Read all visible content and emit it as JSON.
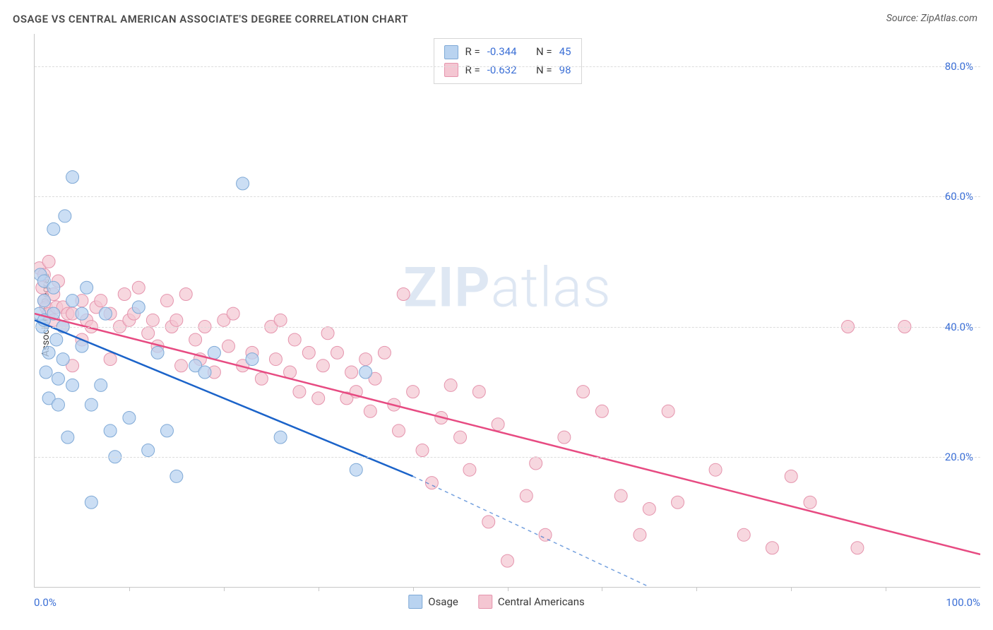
{
  "title": "OSAGE VS CENTRAL AMERICAN ASSOCIATE'S DEGREE CORRELATION CHART",
  "source": "Source: ZipAtlas.com",
  "y_axis_label": "Associate's Degree",
  "watermark_bold": "ZIP",
  "watermark_light": "atlas",
  "chart": {
    "type": "scatter",
    "xlim": [
      0,
      100
    ],
    "ylim": [
      0,
      85
    ],
    "x_min_label": "0.0%",
    "x_max_label": "100.0%",
    "y_grid": [
      20,
      40,
      60,
      80
    ],
    "y_tick_labels": [
      "20.0%",
      "40.0%",
      "60.0%",
      "80.0%"
    ],
    "x_ticks_count": 10,
    "background_color": "#ffffff",
    "grid_color": "#dcdcdc",
    "axis_color": "#c7c7c7",
    "tick_label_color": "#3b6fd6",
    "tick_label_fontsize": 15,
    "series": [
      {
        "name": "Osage",
        "label": "Osage",
        "color_fill": "#b9d3f0",
        "color_stroke": "#7fa9d6",
        "trend_color": "#1b63c9",
        "marker_radius": 9,
        "marker_opacity": 0.75,
        "R": "-0.344",
        "N": "45",
        "trend": {
          "x1": 0,
          "y1": 41,
          "x2_solid": 40,
          "y2_solid": 17,
          "x2_dash": 65,
          "y2_dash": 0
        },
        "points": [
          [
            0.5,
            42
          ],
          [
            0.6,
            48
          ],
          [
            0.8,
            40
          ],
          [
            1,
            44
          ],
          [
            1,
            47
          ],
          [
            1,
            41
          ],
          [
            1.2,
            33
          ],
          [
            1.5,
            36
          ],
          [
            1.5,
            29
          ],
          [
            2,
            46
          ],
          [
            2,
            55
          ],
          [
            2,
            42
          ],
          [
            2.3,
            38
          ],
          [
            2.5,
            32
          ],
          [
            2.5,
            28
          ],
          [
            3,
            40
          ],
          [
            3,
            35
          ],
          [
            3.2,
            57
          ],
          [
            3.5,
            23
          ],
          [
            4,
            31
          ],
          [
            4,
            44
          ],
          [
            4,
            63
          ],
          [
            5,
            37
          ],
          [
            5,
            42
          ],
          [
            5.5,
            46
          ],
          [
            6,
            28
          ],
          [
            6,
            13
          ],
          [
            7,
            31
          ],
          [
            7.5,
            42
          ],
          [
            8,
            24
          ],
          [
            8.5,
            20
          ],
          [
            10,
            26
          ],
          [
            11,
            43
          ],
          [
            12,
            21
          ],
          [
            13,
            36
          ],
          [
            14,
            24
          ],
          [
            15,
            17
          ],
          [
            17,
            34
          ],
          [
            18,
            33
          ],
          [
            19,
            36
          ],
          [
            22,
            62
          ],
          [
            23,
            35
          ],
          [
            26,
            23
          ],
          [
            34,
            18
          ],
          [
            35,
            33
          ]
        ]
      },
      {
        "name": "Central Americans",
        "label": "Central Americans",
        "color_fill": "#f4c6d2",
        "color_stroke": "#e594ad",
        "trend_color": "#e74b82",
        "marker_radius": 9,
        "marker_opacity": 0.7,
        "R": "-0.632",
        "N": "98",
        "trend": {
          "x1": 0,
          "y1": 42,
          "x2_solid": 100,
          "y2_solid": 5,
          "x2_dash": 100,
          "y2_dash": 5
        },
        "points": [
          [
            0.5,
            49
          ],
          [
            0.8,
            46
          ],
          [
            1,
            48
          ],
          [
            1,
            44
          ],
          [
            1.2,
            43
          ],
          [
            1.5,
            50
          ],
          [
            1.5,
            42
          ],
          [
            2,
            45
          ],
          [
            2,
            41
          ],
          [
            2.3,
            43
          ],
          [
            2.5,
            47
          ],
          [
            3,
            40
          ],
          [
            3,
            43
          ],
          [
            3.5,
            42
          ],
          [
            4,
            34
          ],
          [
            4,
            42
          ],
          [
            5,
            38
          ],
          [
            5,
            44
          ],
          [
            5.5,
            41
          ],
          [
            6,
            40
          ],
          [
            6.5,
            43
          ],
          [
            7,
            44
          ],
          [
            8,
            35
          ],
          [
            8,
            42
          ],
          [
            9,
            40
          ],
          [
            9.5,
            45
          ],
          [
            10,
            41
          ],
          [
            10.5,
            42
          ],
          [
            11,
            46
          ],
          [
            12,
            39
          ],
          [
            12.5,
            41
          ],
          [
            13,
            37
          ],
          [
            14,
            44
          ],
          [
            14.5,
            40
          ],
          [
            15,
            41
          ],
          [
            15.5,
            34
          ],
          [
            16,
            45
          ],
          [
            17,
            38
          ],
          [
            17.5,
            35
          ],
          [
            18,
            40
          ],
          [
            19,
            33
          ],
          [
            20,
            41
          ],
          [
            20.5,
            37
          ],
          [
            21,
            42
          ],
          [
            22,
            34
          ],
          [
            23,
            36
          ],
          [
            24,
            32
          ],
          [
            25,
            40
          ],
          [
            25.5,
            35
          ],
          [
            26,
            41
          ],
          [
            27,
            33
          ],
          [
            27.5,
            38
          ],
          [
            28,
            30
          ],
          [
            29,
            36
          ],
          [
            30,
            29
          ],
          [
            30.5,
            34
          ],
          [
            31,
            39
          ],
          [
            32,
            36
          ],
          [
            33,
            29
          ],
          [
            33.5,
            33
          ],
          [
            34,
            30
          ],
          [
            35,
            35
          ],
          [
            35.5,
            27
          ],
          [
            36,
            32
          ],
          [
            37,
            36
          ],
          [
            38,
            28
          ],
          [
            38.5,
            24
          ],
          [
            39,
            45
          ],
          [
            40,
            30
          ],
          [
            41,
            21
          ],
          [
            42,
            16
          ],
          [
            43,
            26
          ],
          [
            44,
            31
          ],
          [
            45,
            23
          ],
          [
            46,
            18
          ],
          [
            47,
            30
          ],
          [
            48,
            10
          ],
          [
            49,
            25
          ],
          [
            50,
            4
          ],
          [
            52,
            14
          ],
          [
            53,
            19
          ],
          [
            54,
            8
          ],
          [
            56,
            23
          ],
          [
            58,
            30
          ],
          [
            60,
            27
          ],
          [
            62,
            14
          ],
          [
            64,
            8
          ],
          [
            65,
            12
          ],
          [
            67,
            27
          ],
          [
            68,
            13
          ],
          [
            72,
            18
          ],
          [
            75,
            8
          ],
          [
            78,
            6
          ],
          [
            80,
            17
          ],
          [
            82,
            13
          ],
          [
            86,
            40
          ],
          [
            87,
            6
          ],
          [
            92,
            40
          ]
        ]
      }
    ]
  },
  "legend_top": {
    "R_prefix": "R =",
    "N_prefix": "N ="
  },
  "legend_bottom": {
    "items": [
      "Osage",
      "Central Americans"
    ]
  }
}
